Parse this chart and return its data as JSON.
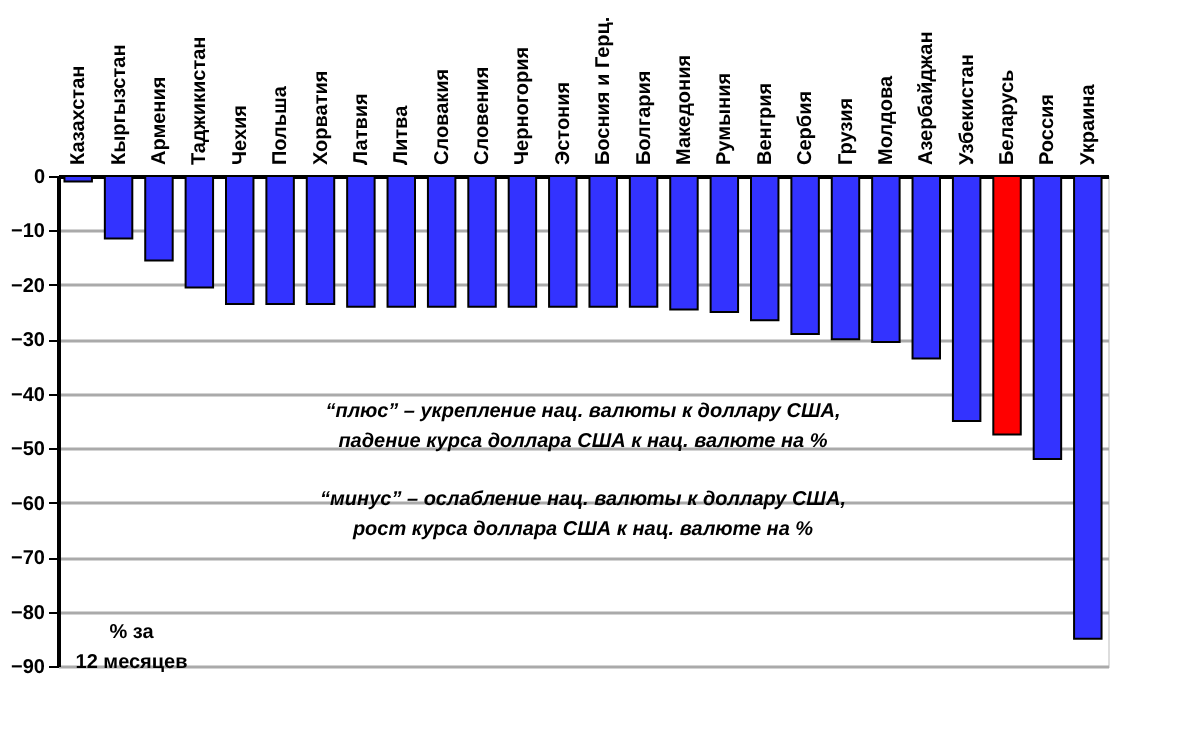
{
  "chart_data": {
    "type": "bar",
    "categories": [
      "Казахстан",
      "Кыргызстан",
      "Армения",
      "Таджикистан",
      "Чехия",
      "Польша",
      "Хорватия",
      "Латвия",
      "Литва",
      "Словакия",
      "Словения",
      "Черногория",
      "Эстония",
      "Босния  и Герц.",
      "Болгария",
      "Македония",
      "Румыния",
      "Венгрия",
      "Сербия",
      "Грузия",
      "Молдова",
      "Азербайджан",
      "Узбекистан",
      "Беларусь",
      "Россия",
      "Украина"
    ],
    "values": [
      -1,
      -11.5,
      -15.5,
      -20.5,
      -23.5,
      -23.5,
      -23.5,
      -24,
      -24,
      -24,
      -24,
      -24,
      -24,
      -24,
      -24,
      -24.5,
      -25,
      -26.5,
      -29,
      -30,
      -30.5,
      -33.5,
      -45,
      -47.5,
      -52,
      -85
    ],
    "colors": [
      "#3333ff",
      "#3333ff",
      "#3333ff",
      "#3333ff",
      "#3333ff",
      "#3333ff",
      "#3333ff",
      "#3333ff",
      "#3333ff",
      "#3333ff",
      "#3333ff",
      "#3333ff",
      "#3333ff",
      "#3333ff",
      "#3333ff",
      "#3333ff",
      "#3333ff",
      "#3333ff",
      "#3333ff",
      "#3333ff",
      "#3333ff",
      "#3333ff",
      "#3333ff",
      "#ff0000",
      "#3333ff",
      "#3333ff"
    ],
    "ylim": [
      -90,
      0
    ],
    "yticks": [
      0,
      -10,
      -20,
      -30,
      -40,
      -50,
      -60,
      -70,
      -80,
      -90
    ],
    "grid": "y",
    "annotations": [
      "“плюс” – укрепление нац. валюты к доллару США,\nпадение курса доллара США к нац. валюте на %",
      "“минус” – ослабление нац. валюты к доллару США,\nрост курса доллара США к нац. валюте на %",
      "% за\n12 месяцев"
    ]
  }
}
